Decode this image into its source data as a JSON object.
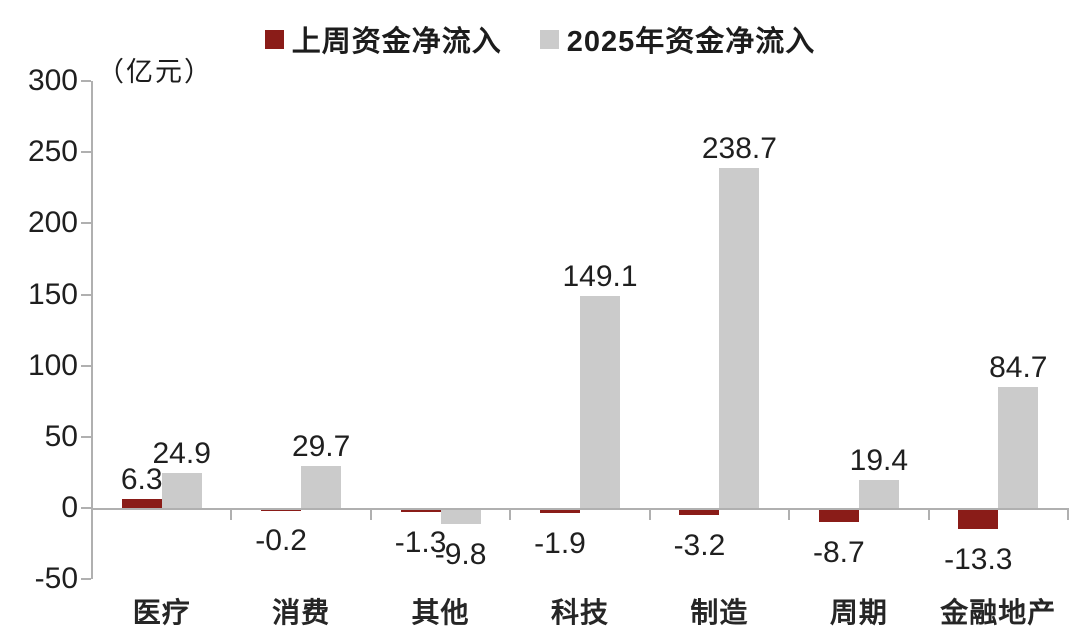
{
  "legend": [
    {
      "label": "上周资金净流入",
      "color": "#8a1c18"
    },
    {
      "label": "2025年资金净流入",
      "color": "#cbcbcb"
    }
  ],
  "chart_data": {
    "type": "bar",
    "title": "",
    "ylabel": "（亿元）",
    "xlabel": "",
    "ylim": [
      -50,
      300
    ],
    "yticks": [
      300,
      250,
      200,
      150,
      100,
      50,
      0,
      -50
    ],
    "grid": false,
    "legend_position": "top",
    "categories": [
      "医疗",
      "消费",
      "其他",
      "科技",
      "制造",
      "周期",
      "金融地产"
    ],
    "series": [
      {
        "name": "上周资金净流入",
        "color": "#8a1c18",
        "values": [
          6.3,
          -0.2,
          -1.3,
          -1.9,
          -3.2,
          -8.7,
          -13.3
        ]
      },
      {
        "name": "2025年资金净流入",
        "color": "#cbcbcb",
        "values": [
          24.9,
          29.7,
          -9.8,
          149.1,
          238.7,
          19.4,
          84.7
        ]
      }
    ],
    "value_label_decimals": 1
  },
  "colors": {
    "axis": "#b0b0b0",
    "text": "#1f1f1f",
    "background": "#ffffff"
  }
}
